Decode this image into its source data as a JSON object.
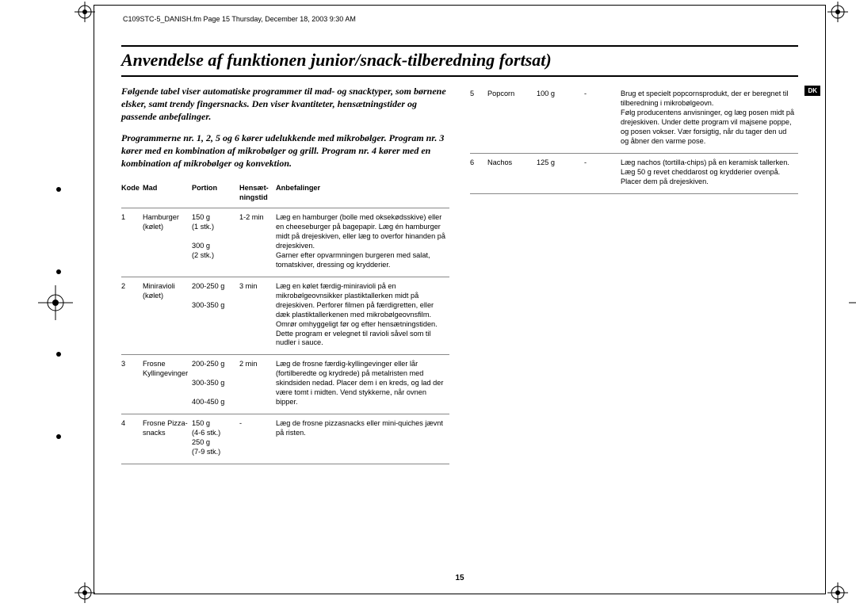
{
  "header": "C109STC-5_DANISH.fm  Page 15  Thursday, December 18, 2003  9:30 AM",
  "title": "Anvendelse af funktionen junior/snack-tilberedning fortsat)",
  "badge": "DK",
  "page_number": "15",
  "intro1": "Følgende tabel viser automatiske programmer til mad- og snacktyper, som børnene elsker, samt trendy fingersnacks. Den viser kvantiteter, hensætningstider og passende anbefalinger.",
  "intro2": "Programmerne nr.  1, 2, 5 og 6 kører udelukkende med mikrobølger. Program nr. 3 kører med en kombination af mikrobølger og grill. Program nr. 4 kører med en kombination af mikrobølger og konvektion.",
  "columns": [
    "Kode",
    "Mad",
    "Portion",
    "Hensæt-\nningstid",
    "Anbefalinger"
  ],
  "rows_left": [
    {
      "kode": "1",
      "mad": "Hamburger (kølet)",
      "portion": "150 g\n(1 stk.)\n\n300 g\n(2 stk.)",
      "hens": "1-2 min",
      "anbe": "Læg en hamburger (bolle med oksekødsskive) eller en cheeseburger på bagepapir. Læg én hamburger midt på drejeskiven, eller læg to overfor hinanden på drejeskiven.\nGarner efter opvarmningen burgeren med salat, tomatskiver, dressing og krydderier."
    },
    {
      "kode": "2",
      "mad": "Miniravioli (kølet)",
      "portion": "200-250 g\n\n300-350 g",
      "hens": "3 min",
      "anbe": "Læg en kølet færdig-miniravioli på en mikrobølgeovnsikker plastiktallerken midt på drejeskiven. Perforer filmen på færdigretten, eller dæk plastiktallerkenen med mikrobølgeovnsfilm. Omrør omhyggeligt før og efter hensætningstiden. Dette program er velegnet til ravioli såvel som til nudler i sauce."
    },
    {
      "kode": "3",
      "mad": "Frosne Kyllingevinger",
      "portion": "200-250 g\n\n300-350 g\n\n400-450 g",
      "hens": "2 min",
      "anbe": "Læg de frosne færdig-kyllingevinger eller lår (fortilberedte og krydrede) på metalristen med skindsiden nedad. Placer dem i en kreds, og lad der være tomt i midten. Vend stykkerne, når ovnen bipper."
    },
    {
      "kode": "4",
      "mad": "Frosne Pizza-snacks",
      "portion": "150 g\n(4-6 stk.)\n250 g\n(7-9 stk.)",
      "hens": "-",
      "anbe": "Læg de frosne pizzasnacks eller mini-quiches jævnt på risten."
    }
  ],
  "rows_right": [
    {
      "kode": "5",
      "mad": "Popcorn",
      "portion": "100 g",
      "hens": "-",
      "anbe": "Brug et specielt popcornsprodukt, der er beregnet til tilberedning i mikrobølgeovn.\nFølg producentens anvisninger, og læg posen midt på drejeskiven. Under dette program vil majsene poppe, og posen vokser. Vær forsigtig, når du tager den ud og åbner den varme pose."
    },
    {
      "kode": "6",
      "mad": "Nachos",
      "portion": "125 g",
      "hens": "-",
      "anbe": "Læg nachos (tortilla-chips) på en keramisk tallerken. Læg 50 g revet cheddarost og krydderier ovenpå. Placer dem på drejeskiven."
    }
  ]
}
